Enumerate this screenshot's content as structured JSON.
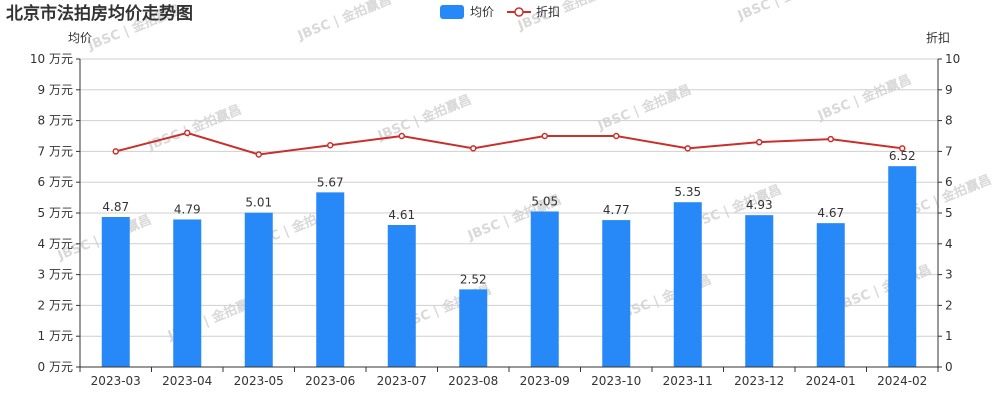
{
  "chart_data": {
    "type": "bar",
    "title": "北京市法拍房均价走势图",
    "categories": [
      "2023-03",
      "2023-04",
      "2023-05",
      "2023-06",
      "2023-07",
      "2023-08",
      "2023-09",
      "2023-10",
      "2023-11",
      "2023-12",
      "2024-01",
      "2024-02"
    ],
    "series": [
      {
        "name": "均价",
        "type": "bar",
        "axis": "left",
        "color": "#2788f7",
        "values": [
          4.87,
          4.79,
          5.01,
          5.67,
          4.61,
          2.52,
          5.05,
          4.77,
          5.35,
          4.93,
          4.67,
          6.52
        ]
      },
      {
        "name": "折扣",
        "type": "line",
        "axis": "right",
        "color": "#c9302c",
        "values": [
          7.0,
          7.6,
          6.9,
          7.2,
          7.5,
          7.1,
          7.5,
          7.5,
          7.1,
          7.3,
          7.4,
          7.1
        ]
      }
    ],
    "y_left": {
      "name": "均价",
      "min": 0,
      "max": 10,
      "step": 1,
      "unit": "万元",
      "tick_labels": [
        "0 万元",
        "1 万元",
        "2 万元",
        "3 万元",
        "4 万元",
        "5 万元",
        "6 万元",
        "7 万元",
        "8 万元",
        "9 万元",
        "10 万元"
      ]
    },
    "y_right": {
      "name": "折扣",
      "min": 0,
      "max": 10,
      "step": 1,
      "tick_labels": [
        "0",
        "1",
        "2",
        "3",
        "4",
        "5",
        "6",
        "7",
        "8",
        "9",
        "10"
      ]
    },
    "data_labels": [
      "4.87",
      "4.79",
      "5.01",
      "5.67",
      "4.61",
      "2.52",
      "5.05",
      "4.77",
      "5.35",
      "4.93",
      "4.67",
      "6.52"
    ],
    "legend": {
      "position": "top-center",
      "items": [
        "均价",
        "折扣"
      ]
    },
    "grid": true,
    "watermark": "JBSC | 金拍嬴昌"
  }
}
